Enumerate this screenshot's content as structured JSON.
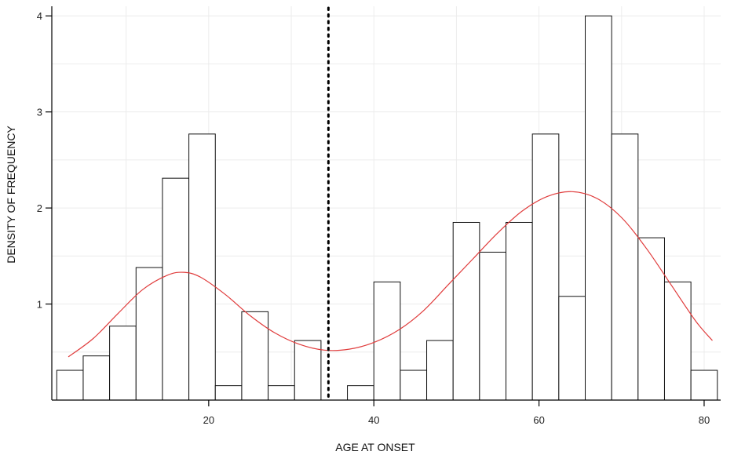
{
  "chart_data": {
    "type": "bar",
    "xlabel": "AGE AT ONSET",
    "ylabel": "DENSITY OF FREQUENCY",
    "xlim": [
      1,
      82
    ],
    "ylim": [
      0,
      4.1
    ],
    "bin_width": 3.2,
    "bins": [
      {
        "start": 1.6,
        "value": 0.31
      },
      {
        "start": 4.8,
        "value": 0.46
      },
      {
        "start": 8.0,
        "value": 0.77
      },
      {
        "start": 11.2,
        "value": 1.38
      },
      {
        "start": 14.4,
        "value": 2.31
      },
      {
        "start": 17.6,
        "value": 2.77
      },
      {
        "start": 20.8,
        "value": 0.15
      },
      {
        "start": 24.0,
        "value": 0.92
      },
      {
        "start": 27.2,
        "value": 0.15
      },
      {
        "start": 30.4,
        "value": 0.62
      },
      {
        "start": 36.8,
        "value": 0.15
      },
      {
        "start": 40.0,
        "value": 1.23
      },
      {
        "start": 43.2,
        "value": 0.31
      },
      {
        "start": 46.4,
        "value": 0.62
      },
      {
        "start": 49.6,
        "value": 1.85
      },
      {
        "start": 52.8,
        "value": 1.54
      },
      {
        "start": 56.0,
        "value": 1.85
      },
      {
        "start": 59.2,
        "value": 2.77
      },
      {
        "start": 62.4,
        "value": 1.08
      },
      {
        "start": 65.6,
        "value": 4.0
      },
      {
        "start": 68.8,
        "value": 2.77
      },
      {
        "start": 72.0,
        "value": 1.69
      },
      {
        "start": 75.2,
        "value": 1.23
      },
      {
        "start": 78.4,
        "value": 0.31
      }
    ],
    "density_curve": {
      "x": [
        3,
        6,
        9,
        12,
        15,
        17,
        19,
        22,
        25,
        28,
        31,
        34,
        37,
        40,
        43,
        46,
        49,
        52,
        55,
        58,
        61,
        64,
        67,
        70,
        73,
        76,
        79,
        81
      ],
      "y": [
        0.45,
        0.64,
        0.9,
        1.15,
        1.3,
        1.33,
        1.28,
        1.1,
        0.88,
        0.7,
        0.58,
        0.52,
        0.53,
        0.6,
        0.73,
        0.93,
        1.2,
        1.47,
        1.74,
        1.97,
        2.12,
        2.17,
        2.1,
        1.9,
        1.58,
        1.2,
        0.82,
        0.62
      ],
      "color": "#e03c3c"
    },
    "reference_line": {
      "x": 34.5,
      "style": "dotted"
    },
    "x_ticks": [
      20,
      40,
      60,
      80
    ],
    "y_ticks": [
      1,
      2,
      3,
      4
    ],
    "grid": true
  }
}
